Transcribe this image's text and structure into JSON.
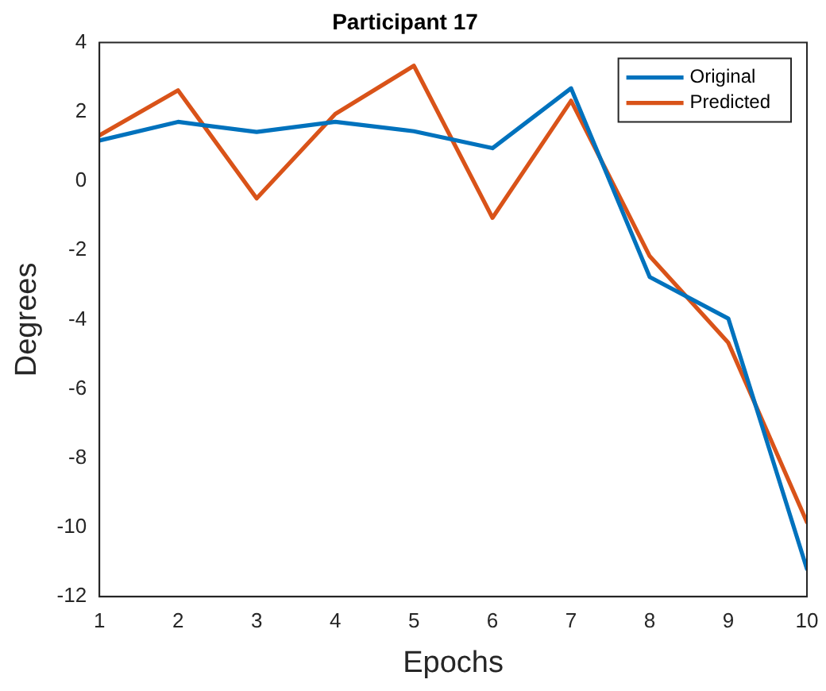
{
  "chart_data": {
    "type": "line",
    "title": "Participant 17",
    "xlabel": "Epochs",
    "ylabel": "Degrees",
    "x": [
      1,
      2,
      3,
      4,
      5,
      6,
      7,
      8,
      9,
      10
    ],
    "series": [
      {
        "name": "Original",
        "color": "#0072bd",
        "values": [
          1.17,
          1.71,
          1.42,
          1.71,
          1.44,
          0.95,
          2.68,
          -2.77,
          -3.97,
          -11.2
        ]
      },
      {
        "name": "Predicted",
        "color": "#d95319",
        "values": [
          1.32,
          2.62,
          -0.5,
          1.94,
          3.33,
          -1.06,
          2.32,
          -2.17,
          -4.67,
          -9.85
        ]
      }
    ],
    "xlim": [
      1,
      10
    ],
    "xticks": [
      1,
      2,
      3,
      4,
      5,
      6,
      7,
      8,
      9,
      10
    ],
    "ylim": [
      -12,
      4
    ],
    "yticks": [
      -12,
      -10,
      -8,
      -6,
      -4,
      -2,
      0,
      2,
      4
    ],
    "grid": false,
    "legend": "top right",
    "marker": "none",
    "line_style": "solid"
  }
}
